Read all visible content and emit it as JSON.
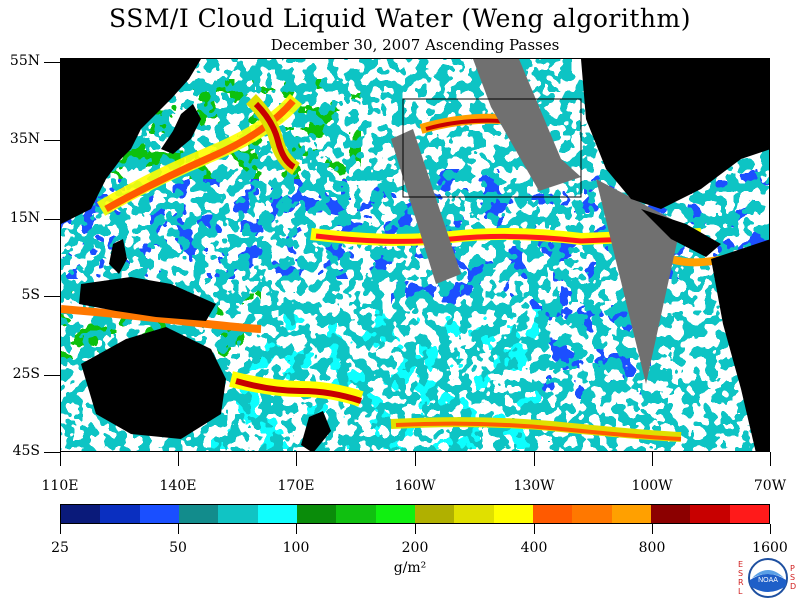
{
  "title": "SSM/I Cloud Liquid Water (Weng algorithm)",
  "subtitle": "December 30, 2007  Ascending Passes",
  "latitude_labels": [
    "55N",
    "35N",
    "15N",
    "5S",
    "25S",
    "45S"
  ],
  "longitude_labels": [
    "110E",
    "140E",
    "170E",
    "160W",
    "130W",
    "100W",
    "70W"
  ],
  "colorbar": {
    "colors": [
      "#0a1a7a",
      "#0a2fc0",
      "#1a4fff",
      "#128c8c",
      "#10c4c4",
      "#10fefe",
      "#0a8c0a",
      "#10c010",
      "#10f010",
      "#b0b000",
      "#e0e000",
      "#ffff00",
      "#ff5a00",
      "#ff7800",
      "#ffa000",
      "#8c0000",
      "#c80000",
      "#ff1a1a"
    ],
    "labels": [
      "25",
      "50",
      "100",
      "200",
      "400",
      "800",
      "1600"
    ],
    "units": "g/m²"
  },
  "map_colors": {
    "land": "#000000",
    "no_data_swath": "#707070",
    "clear": "#ffffff"
  },
  "logo": {
    "text": "NOAA",
    "left_letters": [
      "E",
      "S",
      "R",
      "L"
    ],
    "right_letters": [
      "P",
      "S",
      "D"
    ]
  }
}
